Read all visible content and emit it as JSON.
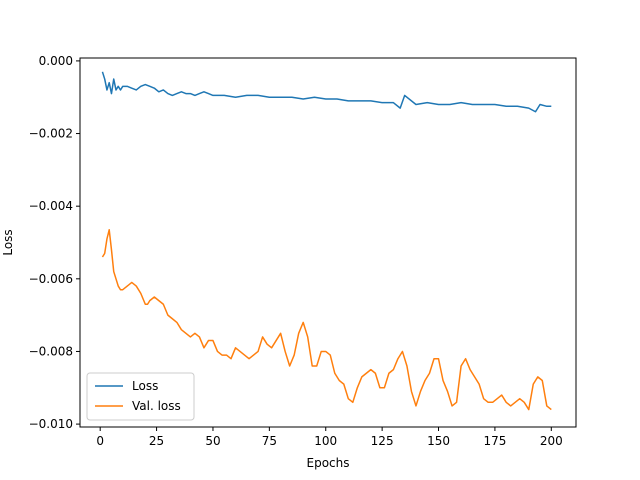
{
  "chart_data": {
    "type": "line",
    "xlabel": "Epochs",
    "ylabel": "Loss",
    "xlim": [
      -8.95,
      210.95
    ],
    "ylim": [
      -0.01008,
      8e-05
    ],
    "xticks": [
      0,
      25,
      50,
      75,
      100,
      125,
      150,
      175,
      200
    ],
    "xtick_labels": [
      "0",
      "25",
      "50",
      "75",
      "100",
      "125",
      "150",
      "175",
      "200"
    ],
    "yticks": [
      0.0,
      -0.002,
      -0.004,
      -0.006,
      -0.008,
      -0.01
    ],
    "ytick_labels": [
      "0.000",
      "−0.002",
      "−0.004",
      "−0.006",
      "−0.008",
      "−0.010"
    ],
    "legend_position": "lower-left",
    "grid": false,
    "series": [
      {
        "name": "Loss",
        "color": "#1f77b4",
        "x": [
          1,
          2,
          3,
          4,
          5,
          6,
          7,
          8,
          9,
          10,
          12,
          14,
          16,
          18,
          20,
          22,
          24,
          26,
          28,
          30,
          32,
          34,
          36,
          38,
          40,
          42,
          44,
          46,
          48,
          50,
          55,
          60,
          65,
          70,
          75,
          80,
          85,
          90,
          95,
          100,
          105,
          110,
          115,
          120,
          125,
          130,
          133,
          135,
          140,
          145,
          150,
          155,
          160,
          165,
          170,
          175,
          180,
          185,
          190,
          193,
          195,
          198,
          200
        ],
        "values": [
          -0.0003,
          -0.0005,
          -0.0008,
          -0.0006,
          -0.0009,
          -0.0005,
          -0.0008,
          -0.0007,
          -0.0008,
          -0.0007,
          -0.0007,
          -0.00075,
          -0.0008,
          -0.0007,
          -0.00065,
          -0.0007,
          -0.00075,
          -0.00085,
          -0.0008,
          -0.0009,
          -0.00095,
          -0.0009,
          -0.00085,
          -0.0009,
          -0.0009,
          -0.00095,
          -0.0009,
          -0.00085,
          -0.0009,
          -0.00095,
          -0.00095,
          -0.001,
          -0.00095,
          -0.00095,
          -0.001,
          -0.001,
          -0.001,
          -0.00105,
          -0.001,
          -0.00105,
          -0.00105,
          -0.0011,
          -0.0011,
          -0.0011,
          -0.00115,
          -0.00115,
          -0.0013,
          -0.00095,
          -0.0012,
          -0.00115,
          -0.0012,
          -0.0012,
          -0.00115,
          -0.0012,
          -0.0012,
          -0.0012,
          -0.00125,
          -0.00125,
          -0.0013,
          -0.0014,
          -0.0012,
          -0.00125,
          -0.00125
        ]
      },
      {
        "name": "Val. loss",
        "color": "#ff7f0e",
        "x": [
          1,
          2,
          3,
          4,
          5,
          6,
          7,
          8,
          9,
          10,
          12,
          14,
          16,
          18,
          20,
          21,
          22,
          24,
          26,
          28,
          30,
          32,
          34,
          36,
          38,
          40,
          42,
          44,
          46,
          48,
          50,
          52,
          54,
          56,
          58,
          60,
          62,
          64,
          66,
          68,
          70,
          72,
          74,
          76,
          78,
          80,
          82,
          84,
          86,
          88,
          90,
          92,
          94,
          96,
          98,
          100,
          102,
          104,
          106,
          108,
          110,
          112,
          114,
          116,
          118,
          120,
          122,
          124,
          126,
          128,
          130,
          132,
          134,
          136,
          138,
          140,
          142,
          144,
          146,
          148,
          150,
          152,
          154,
          156,
          158,
          160,
          162,
          164,
          166,
          168,
          170,
          172,
          174,
          176,
          178,
          180,
          182,
          184,
          186,
          188,
          190,
          192,
          194,
          196,
          198,
          200
        ],
        "values": [
          -0.0054,
          -0.0053,
          -0.0049,
          -0.00465,
          -0.0052,
          -0.0058,
          -0.006,
          -0.0062,
          -0.0063,
          -0.0063,
          -0.0062,
          -0.0061,
          -0.0062,
          -0.0064,
          -0.0067,
          -0.0067,
          -0.0066,
          -0.0065,
          -0.0066,
          -0.0067,
          -0.007,
          -0.0071,
          -0.0072,
          -0.0074,
          -0.0075,
          -0.0076,
          -0.0075,
          -0.0076,
          -0.0079,
          -0.0077,
          -0.0077,
          -0.008,
          -0.0081,
          -0.0081,
          -0.0082,
          -0.0079,
          -0.008,
          -0.0081,
          -0.0082,
          -0.0081,
          -0.008,
          -0.0076,
          -0.0078,
          -0.0079,
          -0.0077,
          -0.0075,
          -0.008,
          -0.0084,
          -0.0081,
          -0.0075,
          -0.0072,
          -0.0076,
          -0.0084,
          -0.0084,
          -0.008,
          -0.008,
          -0.0081,
          -0.0086,
          -0.0088,
          -0.0089,
          -0.0093,
          -0.0094,
          -0.009,
          -0.0087,
          -0.0086,
          -0.0085,
          -0.0086,
          -0.009,
          -0.009,
          -0.0086,
          -0.0085,
          -0.0082,
          -0.008,
          -0.0084,
          -0.0091,
          -0.0095,
          -0.0091,
          -0.0088,
          -0.0086,
          -0.0082,
          -0.0082,
          -0.0088,
          -0.0091,
          -0.0095,
          -0.0094,
          -0.0084,
          -0.0082,
          -0.0085,
          -0.0087,
          -0.0089,
          -0.0093,
          -0.0094,
          -0.0094,
          -0.0093,
          -0.0092,
          -0.0094,
          -0.0095,
          -0.0094,
          -0.0093,
          -0.0094,
          -0.0096,
          -0.0089,
          -0.0087,
          -0.0088,
          -0.0095,
          -0.0096
        ]
      }
    ]
  }
}
